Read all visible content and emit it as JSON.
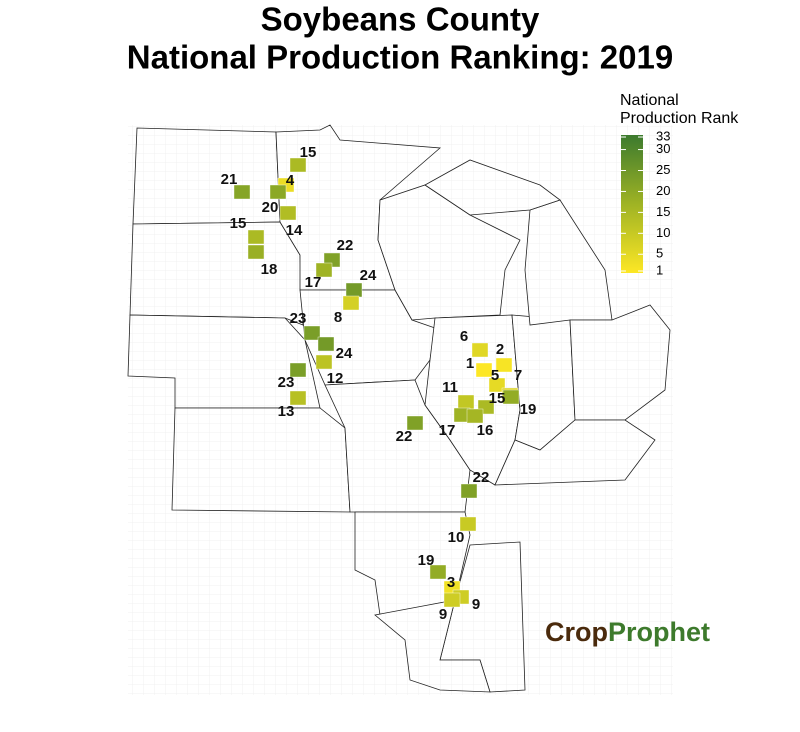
{
  "title": [
    "Soybeans County",
    "National Production Ranking: 2019"
  ],
  "legend": {
    "title": [
      "National",
      "Production Rank"
    ],
    "lim": [
      1,
      33
    ],
    "ticks": [
      1,
      5,
      10,
      15,
      20,
      25,
      30,
      33
    ],
    "colors": [
      "#fde725",
      "#9fb324",
      "#3c7a2e"
    ]
  },
  "county_ranks": [
    15,
    4,
    21,
    20,
    15,
    14,
    18,
    22,
    17,
    24,
    8,
    23,
    24,
    12,
    23,
    13,
    6,
    2,
    1,
    5,
    7,
    11,
    15,
    19,
    17,
    16,
    22,
    22,
    10,
    19,
    3,
    9,
    9
  ],
  "logo": {
    "part1": "Crop",
    "part2": "Prophet"
  }
}
